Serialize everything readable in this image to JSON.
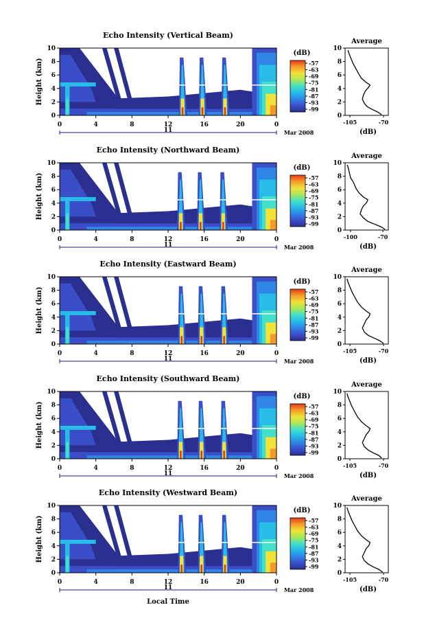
{
  "figure": {
    "xlabel": "Local Time",
    "date_label": "Mar 2008",
    "date_day": "11"
  },
  "chart_data": [
    {
      "type": "heatmap",
      "title": "Echo Intensity (Vertical Beam)",
      "ylabel": "Height (km)",
      "xlabel": "Local Time",
      "x_ticks": [
        "0",
        "4",
        "8",
        "12",
        "16",
        "20",
        "0"
      ],
      "y_ticks": [
        "0",
        "2",
        "4",
        "6",
        "8",
        "10"
      ],
      "xlim": [
        0,
        24
      ],
      "ylim": [
        0,
        10
      ],
      "colorbar": {
        "label": "(dB)",
        "ticks": [
          "-57",
          "-63",
          "-69",
          "-75",
          "-81",
          "-87",
          "-93",
          "-99"
        ],
        "range": [
          -100,
          -54
        ]
      },
      "spikes": [
        13.5,
        15.7,
        18.2
      ],
      "profile": {
        "title": "Average",
        "xlabel": "(dB)",
        "x_ticks": [
          "-105",
          "-70"
        ],
        "y_ticks": [
          "0",
          "2",
          "4",
          "6",
          "8",
          "10"
        ],
        "xlim": [
          -110,
          -65
        ],
        "ylim": [
          0,
          10
        ],
        "points": [
          [
            -72,
            0.1
          ],
          [
            -76,
            0.5
          ],
          [
            -82,
            0.9
          ],
          [
            -87,
            1.3
          ],
          [
            -90,
            1.8
          ],
          [
            -92,
            2.4
          ],
          [
            -91,
            3.0
          ],
          [
            -89,
            3.6
          ],
          [
            -86,
            4.1
          ],
          [
            -84,
            4.5
          ],
          [
            -88,
            4.9
          ],
          [
            -93,
            5.5
          ],
          [
            -96,
            6.2
          ],
          [
            -99,
            7.0
          ],
          [
            -102,
            7.8
          ],
          [
            -104,
            8.5
          ],
          [
            -106,
            9.2
          ],
          [
            -107,
            9.7
          ]
        ]
      }
    },
    {
      "type": "heatmap",
      "title": "Echo Intensity (Northward Beam)",
      "ylabel": "Height (km)",
      "xlabel": "Local Time",
      "x_ticks": [
        "0",
        "4",
        "8",
        "12",
        "16",
        "20",
        "0"
      ],
      "y_ticks": [
        "0",
        "2",
        "4",
        "6",
        "8",
        "10"
      ],
      "xlim": [
        0,
        24
      ],
      "ylim": [
        0,
        10
      ],
      "colorbar": {
        "label": "(dB)",
        "ticks": [
          "-57",
          "-63",
          "-69",
          "-75",
          "-81",
          "-87",
          "-93",
          "-99"
        ],
        "range": [
          -100,
          -54
        ]
      },
      "spikes": [
        13.3,
        15.5,
        18.0
      ],
      "profile": {
        "title": "Average",
        "xlabel": "(dB)",
        "x_ticks": [
          "-100",
          "-70"
        ],
        "y_ticks": [
          "0",
          "2",
          "4",
          "6",
          "8",
          "10"
        ],
        "xlim": [
          -105,
          -65
        ],
        "ylim": [
          0,
          10
        ],
        "points": [
          [
            -68,
            0.1
          ],
          [
            -72,
            0.5
          ],
          [
            -78,
            0.9
          ],
          [
            -84,
            1.3
          ],
          [
            -88,
            1.8
          ],
          [
            -91,
            2.4
          ],
          [
            -90,
            3.0
          ],
          [
            -88,
            3.6
          ],
          [
            -85,
            4.1
          ],
          [
            -84,
            4.5
          ],
          [
            -88,
            4.9
          ],
          [
            -92,
            5.5
          ],
          [
            -95,
            6.2
          ],
          [
            -97,
            7.0
          ],
          [
            -100,
            7.8
          ],
          [
            -101,
            8.5
          ],
          [
            -102,
            9.2
          ],
          [
            -103,
            9.7
          ]
        ]
      }
    },
    {
      "type": "heatmap",
      "title": "Echo Intensity (Eastward Beam)",
      "ylabel": "Height (km)",
      "xlabel": "Local Time",
      "x_ticks": [
        "0",
        "4",
        "8",
        "12",
        "16",
        "20",
        "0"
      ],
      "y_ticks": [
        "0",
        "2",
        "4",
        "6",
        "8",
        "10"
      ],
      "xlim": [
        0,
        24
      ],
      "ylim": [
        0,
        10
      ],
      "colorbar": {
        "label": "(dB)",
        "ticks": [
          "-57",
          "-63",
          "-69",
          "-75",
          "-81",
          "-87",
          "-93",
          "-99"
        ],
        "range": [
          -100,
          -54
        ]
      },
      "spikes": [
        13.4,
        15.6,
        18.1
      ],
      "profile": {
        "title": "Average",
        "xlabel": "(dB)",
        "x_ticks": [
          "-105",
          "-70"
        ],
        "y_ticks": [
          "0",
          "2",
          "4",
          "6",
          "8",
          "10"
        ],
        "xlim": [
          -110,
          -65
        ],
        "ylim": [
          0,
          10
        ],
        "points": [
          [
            -70,
            0.1
          ],
          [
            -74,
            0.5
          ],
          [
            -80,
            0.9
          ],
          [
            -86,
            1.3
          ],
          [
            -90,
            1.8
          ],
          [
            -92,
            2.4
          ],
          [
            -90,
            3.0
          ],
          [
            -88,
            3.6
          ],
          [
            -85,
            4.1
          ],
          [
            -84,
            4.5
          ],
          [
            -88,
            4.9
          ],
          [
            -93,
            5.5
          ],
          [
            -97,
            6.2
          ],
          [
            -100,
            7.0
          ],
          [
            -103,
            7.8
          ],
          [
            -105,
            8.5
          ],
          [
            -107,
            9.2
          ],
          [
            -108,
            9.7
          ]
        ]
      }
    },
    {
      "type": "heatmap",
      "title": "Echo Intensity (Southward Beam)",
      "ylabel": "Height (km)",
      "xlabel": "Local Time",
      "x_ticks": [
        "0",
        "4",
        "8",
        "12",
        "16",
        "20",
        "0"
      ],
      "y_ticks": [
        "0",
        "2",
        "4",
        "6",
        "8",
        "10"
      ],
      "xlim": [
        0,
        24
      ],
      "ylim": [
        0,
        10
      ],
      "colorbar": {
        "label": "(dB)",
        "ticks": [
          "-57",
          "-63",
          "-69",
          "-75",
          "-81",
          "-87",
          "-93",
          "-99"
        ],
        "range": [
          -100,
          -54
        ]
      },
      "spikes": [
        13.3,
        15.6,
        18.1
      ],
      "profile": {
        "title": "Average",
        "xlabel": "(dB)",
        "x_ticks": [
          "-105",
          "-70"
        ],
        "y_ticks": [
          "0",
          "2",
          "4",
          "6",
          "8",
          "10"
        ],
        "xlim": [
          -110,
          -65
        ],
        "ylim": [
          0,
          10
        ],
        "points": [
          [
            -72,
            0.1
          ],
          [
            -75,
            0.5
          ],
          [
            -81,
            0.9
          ],
          [
            -86,
            1.3
          ],
          [
            -90,
            1.8
          ],
          [
            -92,
            2.4
          ],
          [
            -90,
            3.0
          ],
          [
            -88,
            3.6
          ],
          [
            -85,
            4.1
          ],
          [
            -84,
            4.5
          ],
          [
            -88,
            4.9
          ],
          [
            -93,
            5.5
          ],
          [
            -97,
            6.2
          ],
          [
            -100,
            7.0
          ],
          [
            -103,
            7.8
          ],
          [
            -105,
            8.5
          ],
          [
            -107,
            9.2
          ],
          [
            -108,
            9.7
          ]
        ]
      }
    },
    {
      "type": "heatmap",
      "title": "Echo Intensity (Westward Beam)",
      "ylabel": "Height (km)",
      "xlabel": "Local Time",
      "x_ticks": [
        "0",
        "4",
        "8",
        "12",
        "16",
        "20",
        "0"
      ],
      "y_ticks": [
        "0",
        "2",
        "4",
        "6",
        "8",
        "10"
      ],
      "xlim": [
        0,
        24
      ],
      "ylim": [
        0,
        10
      ],
      "colorbar": {
        "label": "(dB)",
        "ticks": [
          "-57",
          "-63",
          "-69",
          "-75",
          "-81",
          "-87",
          "-93",
          "-99"
        ],
        "range": [
          -100,
          -54
        ]
      },
      "spikes": [
        13.4,
        15.6,
        18.2
      ],
      "profile": {
        "title": "Average",
        "xlabel": "(dB)",
        "x_ticks": [
          "-105",
          "-70"
        ],
        "y_ticks": [
          "0",
          "2",
          "4",
          "6",
          "8",
          "10"
        ],
        "xlim": [
          -110,
          -65
        ],
        "ylim": [
          0,
          10
        ],
        "points": [
          [
            -71,
            0.1
          ],
          [
            -75,
            0.5
          ],
          [
            -81,
            0.9
          ],
          [
            -86,
            1.3
          ],
          [
            -90,
            1.8
          ],
          [
            -92,
            2.4
          ],
          [
            -90,
            3.0
          ],
          [
            -88,
            3.6
          ],
          [
            -85,
            4.1
          ],
          [
            -84,
            4.5
          ],
          [
            -88,
            4.9
          ],
          [
            -93,
            5.5
          ],
          [
            -97,
            6.2
          ],
          [
            -100,
            7.0
          ],
          [
            -103,
            7.8
          ],
          [
            -105,
            8.5
          ],
          [
            -107,
            9.2
          ],
          [
            -108,
            9.7
          ]
        ]
      }
    }
  ]
}
